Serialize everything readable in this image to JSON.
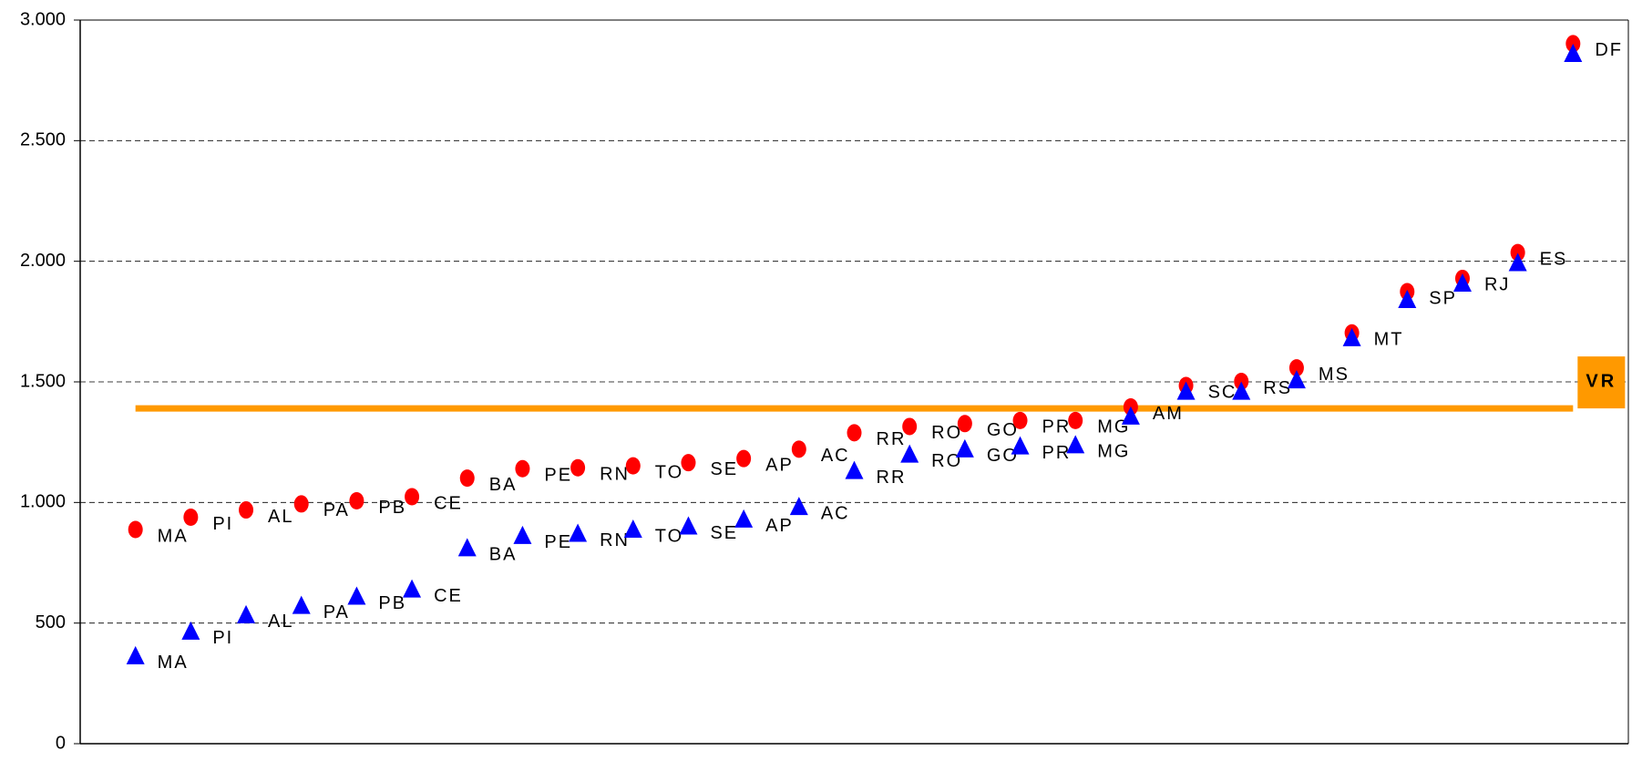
{
  "chart_data": {
    "type": "scatter",
    "categories": [
      "MA",
      "PI",
      "AL",
      "PA",
      "PB",
      "CE",
      "BA",
      "PE",
      "RN",
      "TO",
      "SE",
      "AP",
      "AC",
      "RR",
      "RO",
      "GO",
      "PR",
      "MG",
      "AM",
      "SC",
      "RS",
      "MS",
      "MT",
      "SP",
      "RJ",
      "ES",
      "DF"
    ],
    "series": [
      {
        "color": "#ff0000",
        "marker": "circle",
        "values": [
          888,
          939,
          969,
          994,
          1007,
          1024,
          1101,
          1140,
          1144,
          1152,
          1165,
          1182,
          1221,
          1289,
          1315,
          1327,
          1340,
          1340,
          1396,
          1485,
          1502,
          1558,
          1703,
          1874,
          1929,
          2036,
          2902
        ]
      },
      {
        "color": "#0000ff",
        "marker": "triangle",
        "values": [
          363,
          465,
          533,
          572,
          610,
          640,
          811,
          862,
          871,
          888,
          901,
          930,
          982,
          1131,
          1199,
          1221,
          1233,
          1238,
          1357,
          1460,
          1460,
          1507,
          1682,
          1840,
          1908,
          1993,
          2860
        ],
        "labels": [
          "MA",
          "PI",
          "AL",
          "PA",
          "PB",
          "CE",
          "BA",
          "PE",
          "RN",
          "TO",
          "SE",
          "AP",
          "AC",
          "RR",
          "RO",
          "GO",
          "PR",
          "MG",
          null,
          null,
          null,
          null,
          null,
          null,
          null,
          null,
          null
        ]
      }
    ],
    "reference_line": {
      "label": "VR",
      "value": 1390,
      "color": "#ff9900"
    },
    "ylim": [
      0,
      3000
    ],
    "yticks": [
      {
        "value": 0,
        "label": "0"
      },
      {
        "value": 500,
        "label": "500"
      },
      {
        "value": 1000,
        "label": "1.000"
      },
      {
        "value": 1500,
        "label": "1.500"
      },
      {
        "value": 2000,
        "label": "2.000"
      },
      {
        "value": 2500,
        "label": "2.500"
      },
      {
        "value": 3000,
        "label": "3.000"
      }
    ],
    "grid": true
  }
}
